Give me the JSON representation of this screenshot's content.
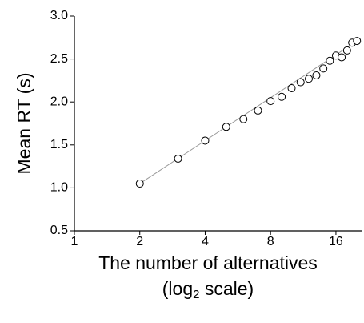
{
  "chart_data": {
    "type": "scatter",
    "y_label": "Mean RT (s)",
    "x_label": "The number of alternatives",
    "x_label_2": [
      "(log",
      "2",
      " scale)"
    ],
    "x_scale": "log2",
    "x": [
      2,
      3,
      4,
      5,
      6,
      7,
      8,
      9,
      10,
      11,
      12,
      13,
      14,
      15,
      16,
      17,
      18,
      19,
      20
    ],
    "values": [
      1.05,
      1.34,
      1.55,
      1.71,
      1.8,
      1.9,
      2.01,
      2.06,
      2.16,
      2.23,
      2.27,
      2.31,
      2.39,
      2.48,
      2.54,
      2.52,
      2.6,
      2.69,
      2.71
    ],
    "fit_x": [
      2,
      20
    ],
    "fit_values": [
      1.05,
      2.71
    ],
    "fit_color": "#999999",
    "color": "#000000",
    "xlim": [
      1,
      21
    ],
    "xticks": [
      1,
      2,
      4,
      8,
      16
    ],
    "ylim": [
      0.5,
      3.0
    ],
    "yticks": [
      0.5,
      {
        "value": 1.0,
        "label": "1.0"
      },
      1.5,
      {
        "value": 2.0,
        "label": "2.0"
      },
      2.5,
      {
        "value": 3.0,
        "label": "3.0"
      }
    ]
  }
}
